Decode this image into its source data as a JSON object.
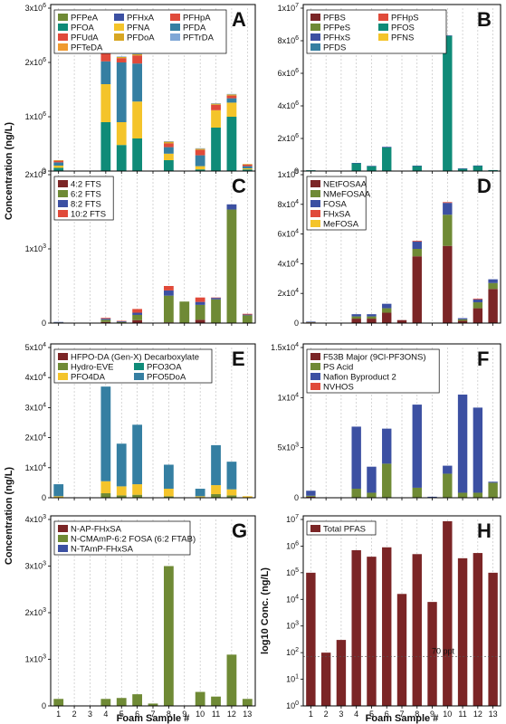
{
  "colors": {
    "maroon": "#7b2526",
    "olive": "#6f8a35",
    "blue": "#3c50a2",
    "red": "#e04a3a",
    "yellow": "#f4c42a",
    "teal": "#0f8b78",
    "steel": "#357fa2",
    "gold": "#d7a623",
    "lightblue": "#7fa7d6",
    "orange": "#f09a2f"
  },
  "figure": {
    "shared_xlabel": "Foam Sample #",
    "left_ylabel_top": "Concentration (ng/L)",
    "left_ylabel_bottom": "Concentration (ng/L)",
    "right_ylabel_bottom": "log10 Conc. (ng/L)",
    "samples": [
      "1",
      "2",
      "3",
      "4",
      "5",
      "6",
      "7",
      "8",
      "9",
      "10",
      "11",
      "12",
      "13"
    ]
  },
  "chart_data": [
    {
      "panel": "A",
      "type": "bar",
      "stacked": true,
      "categories": [
        "1",
        "2",
        "3",
        "4",
        "5",
        "6",
        "7",
        "8",
        "9",
        "10",
        "11",
        "12",
        "13"
      ],
      "ylim": [
        0,
        3000000
      ],
      "yticks": [
        0,
        1000000,
        2000000,
        3000000
      ],
      "ytick_labels": [
        "0",
        "1x10^6",
        "2x10^6",
        "3x10^6"
      ],
      "legend_cols": 3,
      "series": [
        {
          "name": "PFPeA",
          "color": "#6f8a35",
          "values": [
            0,
            0,
            0,
            0,
            0,
            0,
            0,
            0,
            0,
            0,
            0,
            0,
            0
          ]
        },
        {
          "name": "PFHxA",
          "color": "#3c50a2",
          "values": [
            0,
            0,
            0,
            0,
            0,
            0,
            0,
            0,
            0,
            0,
            0,
            0,
            0
          ]
        },
        {
          "name": "PFHpA",
          "color": "#e04a3a",
          "values": [
            0,
            0,
            0,
            0,
            0,
            0,
            0,
            0,
            0,
            0,
            0,
            0,
            0
          ]
        },
        {
          "name": "PFOA",
          "color": "#0f8b78",
          "values": [
            60000,
            0,
            0,
            900000,
            480000,
            600000,
            0,
            200000,
            0,
            30000,
            800000,
            1000000,
            30000
          ]
        },
        {
          "name": "PFNA",
          "color": "#f4c42a",
          "values": [
            40000,
            0,
            0,
            700000,
            420000,
            680000,
            0,
            120000,
            0,
            60000,
            320000,
            260000,
            20000
          ]
        },
        {
          "name": "PFDA",
          "color": "#357fa2",
          "values": [
            60000,
            0,
            0,
            420000,
            1100000,
            700000,
            0,
            120000,
            0,
            200000,
            0,
            80000,
            40000
          ]
        },
        {
          "name": "PFUdA",
          "color": "#e04a3a",
          "values": [
            30000,
            0,
            0,
            150000,
            80000,
            150000,
            0,
            70000,
            0,
            100000,
            100000,
            50000,
            30000
          ]
        },
        {
          "name": "PFDoA",
          "color": "#d7a623",
          "values": [
            10000,
            0,
            0,
            20000,
            20000,
            20000,
            0,
            30000,
            0,
            20000,
            20000,
            20000,
            10000
          ]
        },
        {
          "name": "PFTrDA",
          "color": "#7fa7d6",
          "values": [
            0,
            0,
            0,
            10000,
            10000,
            10000,
            0,
            10000,
            0,
            10000,
            10000,
            10000,
            0
          ]
        },
        {
          "name": "PFTeDA",
          "color": "#f09a2f",
          "values": [
            0,
            0,
            0,
            0,
            0,
            0,
            0,
            0,
            0,
            0,
            0,
            0,
            0
          ]
        }
      ]
    },
    {
      "panel": "B",
      "type": "bar",
      "stacked": true,
      "categories": [
        "1",
        "2",
        "3",
        "4",
        "5",
        "6",
        "7",
        "8",
        "9",
        "10",
        "11",
        "12",
        "13"
      ],
      "ylim": [
        0,
        10000000
      ],
      "yticks": [
        0,
        2000000,
        4000000,
        6000000,
        8000000,
        10000000
      ],
      "ytick_labels": [
        "0",
        "2x10^6",
        "4x10^6",
        "6x10^6",
        "8x10^6",
        "1x10^7"
      ],
      "legend_cols": 2,
      "series": [
        {
          "name": "PFBS",
          "color": "#7b2526",
          "values": [
            0,
            0,
            0,
            0,
            0,
            0,
            0,
            0,
            0,
            0,
            0,
            0,
            0
          ]
        },
        {
          "name": "PFHpS",
          "color": "#e04a3a",
          "values": [
            0,
            0,
            0,
            0,
            0,
            0,
            0,
            0,
            0,
            0,
            0,
            0,
            0
          ]
        },
        {
          "name": "PFPeS",
          "color": "#6f8a35",
          "values": [
            0,
            0,
            0,
            0,
            0,
            0,
            0,
            0,
            0,
            0,
            0,
            0,
            0
          ]
        },
        {
          "name": "PFOS",
          "color": "#0f8b78",
          "values": [
            50000,
            0,
            0,
            480000,
            300000,
            1450000,
            0,
            320000,
            0,
            8300000,
            150000,
            330000,
            60000
          ]
        },
        {
          "name": "PFHxS",
          "color": "#3c50a2",
          "values": [
            0,
            0,
            0,
            20000,
            20000,
            40000,
            0,
            10000,
            0,
            30000,
            10000,
            10000,
            0
          ]
        },
        {
          "name": "PFNS",
          "color": "#f4c42a",
          "values": [
            0,
            0,
            0,
            0,
            0,
            0,
            0,
            0,
            0,
            0,
            0,
            0,
            0
          ]
        },
        {
          "name": "PFDS",
          "color": "#357fa2",
          "values": [
            0,
            0,
            0,
            0,
            0,
            0,
            0,
            0,
            0,
            0,
            0,
            0,
            0
          ]
        }
      ]
    },
    {
      "panel": "C",
      "type": "bar",
      "stacked": true,
      "categories": [
        "1",
        "2",
        "3",
        "4",
        "5",
        "6",
        "7",
        "8",
        "9",
        "10",
        "11",
        "12",
        "13"
      ],
      "ylim": [
        0,
        2000
      ],
      "yticks": [
        0,
        1000,
        2000
      ],
      "ytick_labels": [
        "0",
        "1x10^3",
        "2x10^3"
      ],
      "legend_cols": 1,
      "series": [
        {
          "name": "4:2 FTS",
          "color": "#7b2526",
          "values": [
            5,
            0,
            0,
            15,
            5,
            40,
            0,
            10,
            0,
            45,
            0,
            0,
            5
          ]
        },
        {
          "name": "6:2 FTS",
          "color": "#6f8a35",
          "values": [
            5,
            0,
            0,
            30,
            10,
            70,
            0,
            360,
            290,
            200,
            320,
            1530,
            100
          ]
        },
        {
          "name": "8:2 FTS",
          "color": "#3c50a2",
          "values": [
            5,
            0,
            0,
            15,
            10,
            30,
            0,
            70,
            0,
            40,
            20,
            70,
            10
          ]
        },
        {
          "name": "10:2 FTS",
          "color": "#e04a3a",
          "values": [
            0,
            0,
            0,
            10,
            5,
            50,
            0,
            60,
            0,
            60,
            5,
            0,
            10
          ]
        }
      ]
    },
    {
      "panel": "D",
      "type": "bar",
      "stacked": true,
      "categories": [
        "1",
        "2",
        "3",
        "4",
        "5",
        "6",
        "7",
        "8",
        "9",
        "10",
        "11",
        "12",
        "13"
      ],
      "ylim": [
        0,
        100000
      ],
      "yticks": [
        0,
        20000,
        40000,
        60000,
        80000,
        100000
      ],
      "ytick_labels": [
        "0",
        "2x10^4",
        "4x10^4",
        "6x10^4",
        "8x10^4",
        "1x10^5"
      ],
      "legend_cols": 1,
      "series": [
        {
          "name": "NEtFOSAA",
          "color": "#7b2526",
          "values": [
            500,
            0,
            0,
            3000,
            3000,
            7000,
            2000,
            45000,
            0,
            52000,
            1500,
            10000,
            23000
          ]
        },
        {
          "name": "NMeFOSAA",
          "color": "#6f8a35",
          "values": [
            300,
            0,
            0,
            1500,
            1500,
            3000,
            0,
            5000,
            0,
            21000,
            1000,
            4000,
            4000
          ]
        },
        {
          "name": "FOSA",
          "color": "#3c50a2",
          "values": [
            200,
            0,
            0,
            1500,
            1500,
            3000,
            0,
            5000,
            0,
            8000,
            800,
            2000,
            2500
          ]
        },
        {
          "name": "FHxSA",
          "color": "#e04a3a",
          "values": [
            0,
            0,
            0,
            0,
            0,
            0,
            0,
            500,
            0,
            500,
            0,
            500,
            0
          ]
        },
        {
          "name": "MeFOSA",
          "color": "#f4c42a",
          "values": [
            0,
            0,
            0,
            0,
            0,
            0,
            0,
            0,
            0,
            0,
            0,
            0,
            0
          ]
        }
      ]
    },
    {
      "panel": "E",
      "type": "bar",
      "stacked": true,
      "categories": [
        "1",
        "2",
        "3",
        "4",
        "5",
        "6",
        "7",
        "8",
        "9",
        "10",
        "11",
        "12",
        "13"
      ],
      "ylim": [
        0,
        50000
      ],
      "yticks": [
        0,
        10000,
        20000,
        30000,
        40000,
        50000
      ],
      "ytick_labels": [
        "0",
        "1x10^4",
        "2x10^4",
        "3x10^4",
        "4x10^4",
        "5x10^4"
      ],
      "legend_cols": 2,
      "legend_first_full": true,
      "series": [
        {
          "name": "HFPO-DA (Gen-X) Decarboxylate",
          "color": "#7b2526",
          "values": [
            0,
            0,
            0,
            0,
            0,
            0,
            0,
            0,
            0,
            0,
            0,
            0,
            0
          ]
        },
        {
          "name": "Hydro-EVE",
          "color": "#6f8a35",
          "values": [
            0,
            0,
            0,
            1500,
            800,
            1000,
            0,
            500,
            0,
            200,
            1200,
            800,
            0
          ]
        },
        {
          "name": "PFO3OA",
          "color": "#0f8b78",
          "values": [
            0,
            0,
            0,
            0,
            0,
            0,
            0,
            0,
            0,
            0,
            0,
            0,
            0
          ]
        },
        {
          "name": "PFO4DA",
          "color": "#f4c42a",
          "values": [
            500,
            0,
            0,
            4000,
            3000,
            3500,
            0,
            2500,
            0,
            300,
            3000,
            2000,
            500
          ]
        },
        {
          "name": "PFO5DoA",
          "color": "#357fa2",
          "values": [
            4000,
            0,
            0,
            31500,
            14200,
            19800,
            0,
            8000,
            0,
            2500,
            13300,
            9200,
            0
          ]
        }
      ]
    },
    {
      "panel": "F",
      "type": "bar",
      "stacked": true,
      "categories": [
        "1",
        "2",
        "3",
        "4",
        "5",
        "6",
        "7",
        "8",
        "9",
        "10",
        "11",
        "12",
        "13"
      ],
      "ylim": [
        0,
        15000
      ],
      "yticks": [
        0,
        5000,
        10000,
        15000
      ],
      "ytick_labels": [
        "0",
        "5x10^3",
        "1x10^4",
        "1.5x10^4"
      ],
      "legend_cols": 1,
      "series": [
        {
          "name": "F53B Major (9Cl-PF3ONS)",
          "color": "#7b2526",
          "values": [
            100,
            0,
            0,
            0,
            0,
            0,
            0,
            0,
            0,
            0,
            0,
            0,
            0
          ]
        },
        {
          "name": "PS Acid",
          "color": "#6f8a35",
          "values": [
            100,
            0,
            0,
            900,
            500,
            3400,
            0,
            1000,
            0,
            2400,
            500,
            500,
            1500
          ]
        },
        {
          "name": "Nafion Byproduct 2",
          "color": "#3c50a2",
          "values": [
            500,
            0,
            0,
            6200,
            2600,
            3500,
            0,
            8300,
            100,
            800,
            9800,
            8500,
            100
          ]
        },
        {
          "name": "NVHOS",
          "color": "#e04a3a",
          "values": [
            0,
            0,
            0,
            0,
            0,
            0,
            0,
            0,
            0,
            0,
            0,
            0,
            0
          ]
        }
      ]
    },
    {
      "panel": "G",
      "type": "bar",
      "stacked": true,
      "categories": [
        "1",
        "2",
        "3",
        "4",
        "5",
        "6",
        "7",
        "8",
        "9",
        "10",
        "11",
        "12",
        "13"
      ],
      "ylim": [
        0,
        4000
      ],
      "yticks": [
        0,
        1000,
        2000,
        3000,
        4000
      ],
      "ytick_labels": [
        "0",
        "1x10^3",
        "2x10^3",
        "3x10^3",
        "4x10^3"
      ],
      "legend_cols": 1,
      "series": [
        {
          "name": "N-AP-FHxSA",
          "color": "#7b2526",
          "values": [
            0,
            0,
            0,
            0,
            0,
            0,
            0,
            0,
            0,
            0,
            0,
            0,
            0
          ]
        },
        {
          "name": "N-CMAmP-6:2 FOSA (6:2 FTAB)",
          "color": "#6f8a35",
          "values": [
            150,
            0,
            0,
            150,
            170,
            250,
            50,
            3000,
            0,
            300,
            200,
            1100,
            150
          ]
        },
        {
          "name": "N-TAmP-FHxSA",
          "color": "#3c50a2",
          "values": [
            0,
            0,
            0,
            0,
            0,
            0,
            0,
            0,
            0,
            0,
            0,
            0,
            0
          ]
        }
      ]
    },
    {
      "panel": "H",
      "type": "bar",
      "scale": "log",
      "categories": [
        "1",
        "2",
        "3",
        "4",
        "5",
        "6",
        "7",
        "8",
        "9",
        "10",
        "11",
        "12",
        "13"
      ],
      "ylim": [
        1,
        10000000
      ],
      "yticks": [
        1,
        10,
        100,
        1000,
        10000,
        100000,
        1000000,
        10000000
      ],
      "ytick_labels": [
        "10^0",
        "10^1",
        "10^2",
        "10^3",
        "10^4",
        "10^5",
        "10^6",
        "10^7"
      ],
      "legend_cols": 1,
      "reference_line": {
        "value": 70,
        "label": "70 ppt"
      },
      "series": [
        {
          "name": "Total PFAS",
          "color": "#7b2526",
          "values": [
            100000,
            100,
            300,
            700000,
            400000,
            900000,
            16000,
            500000,
            8000,
            8600000,
            350000,
            550000,
            100000
          ]
        }
      ]
    }
  ]
}
